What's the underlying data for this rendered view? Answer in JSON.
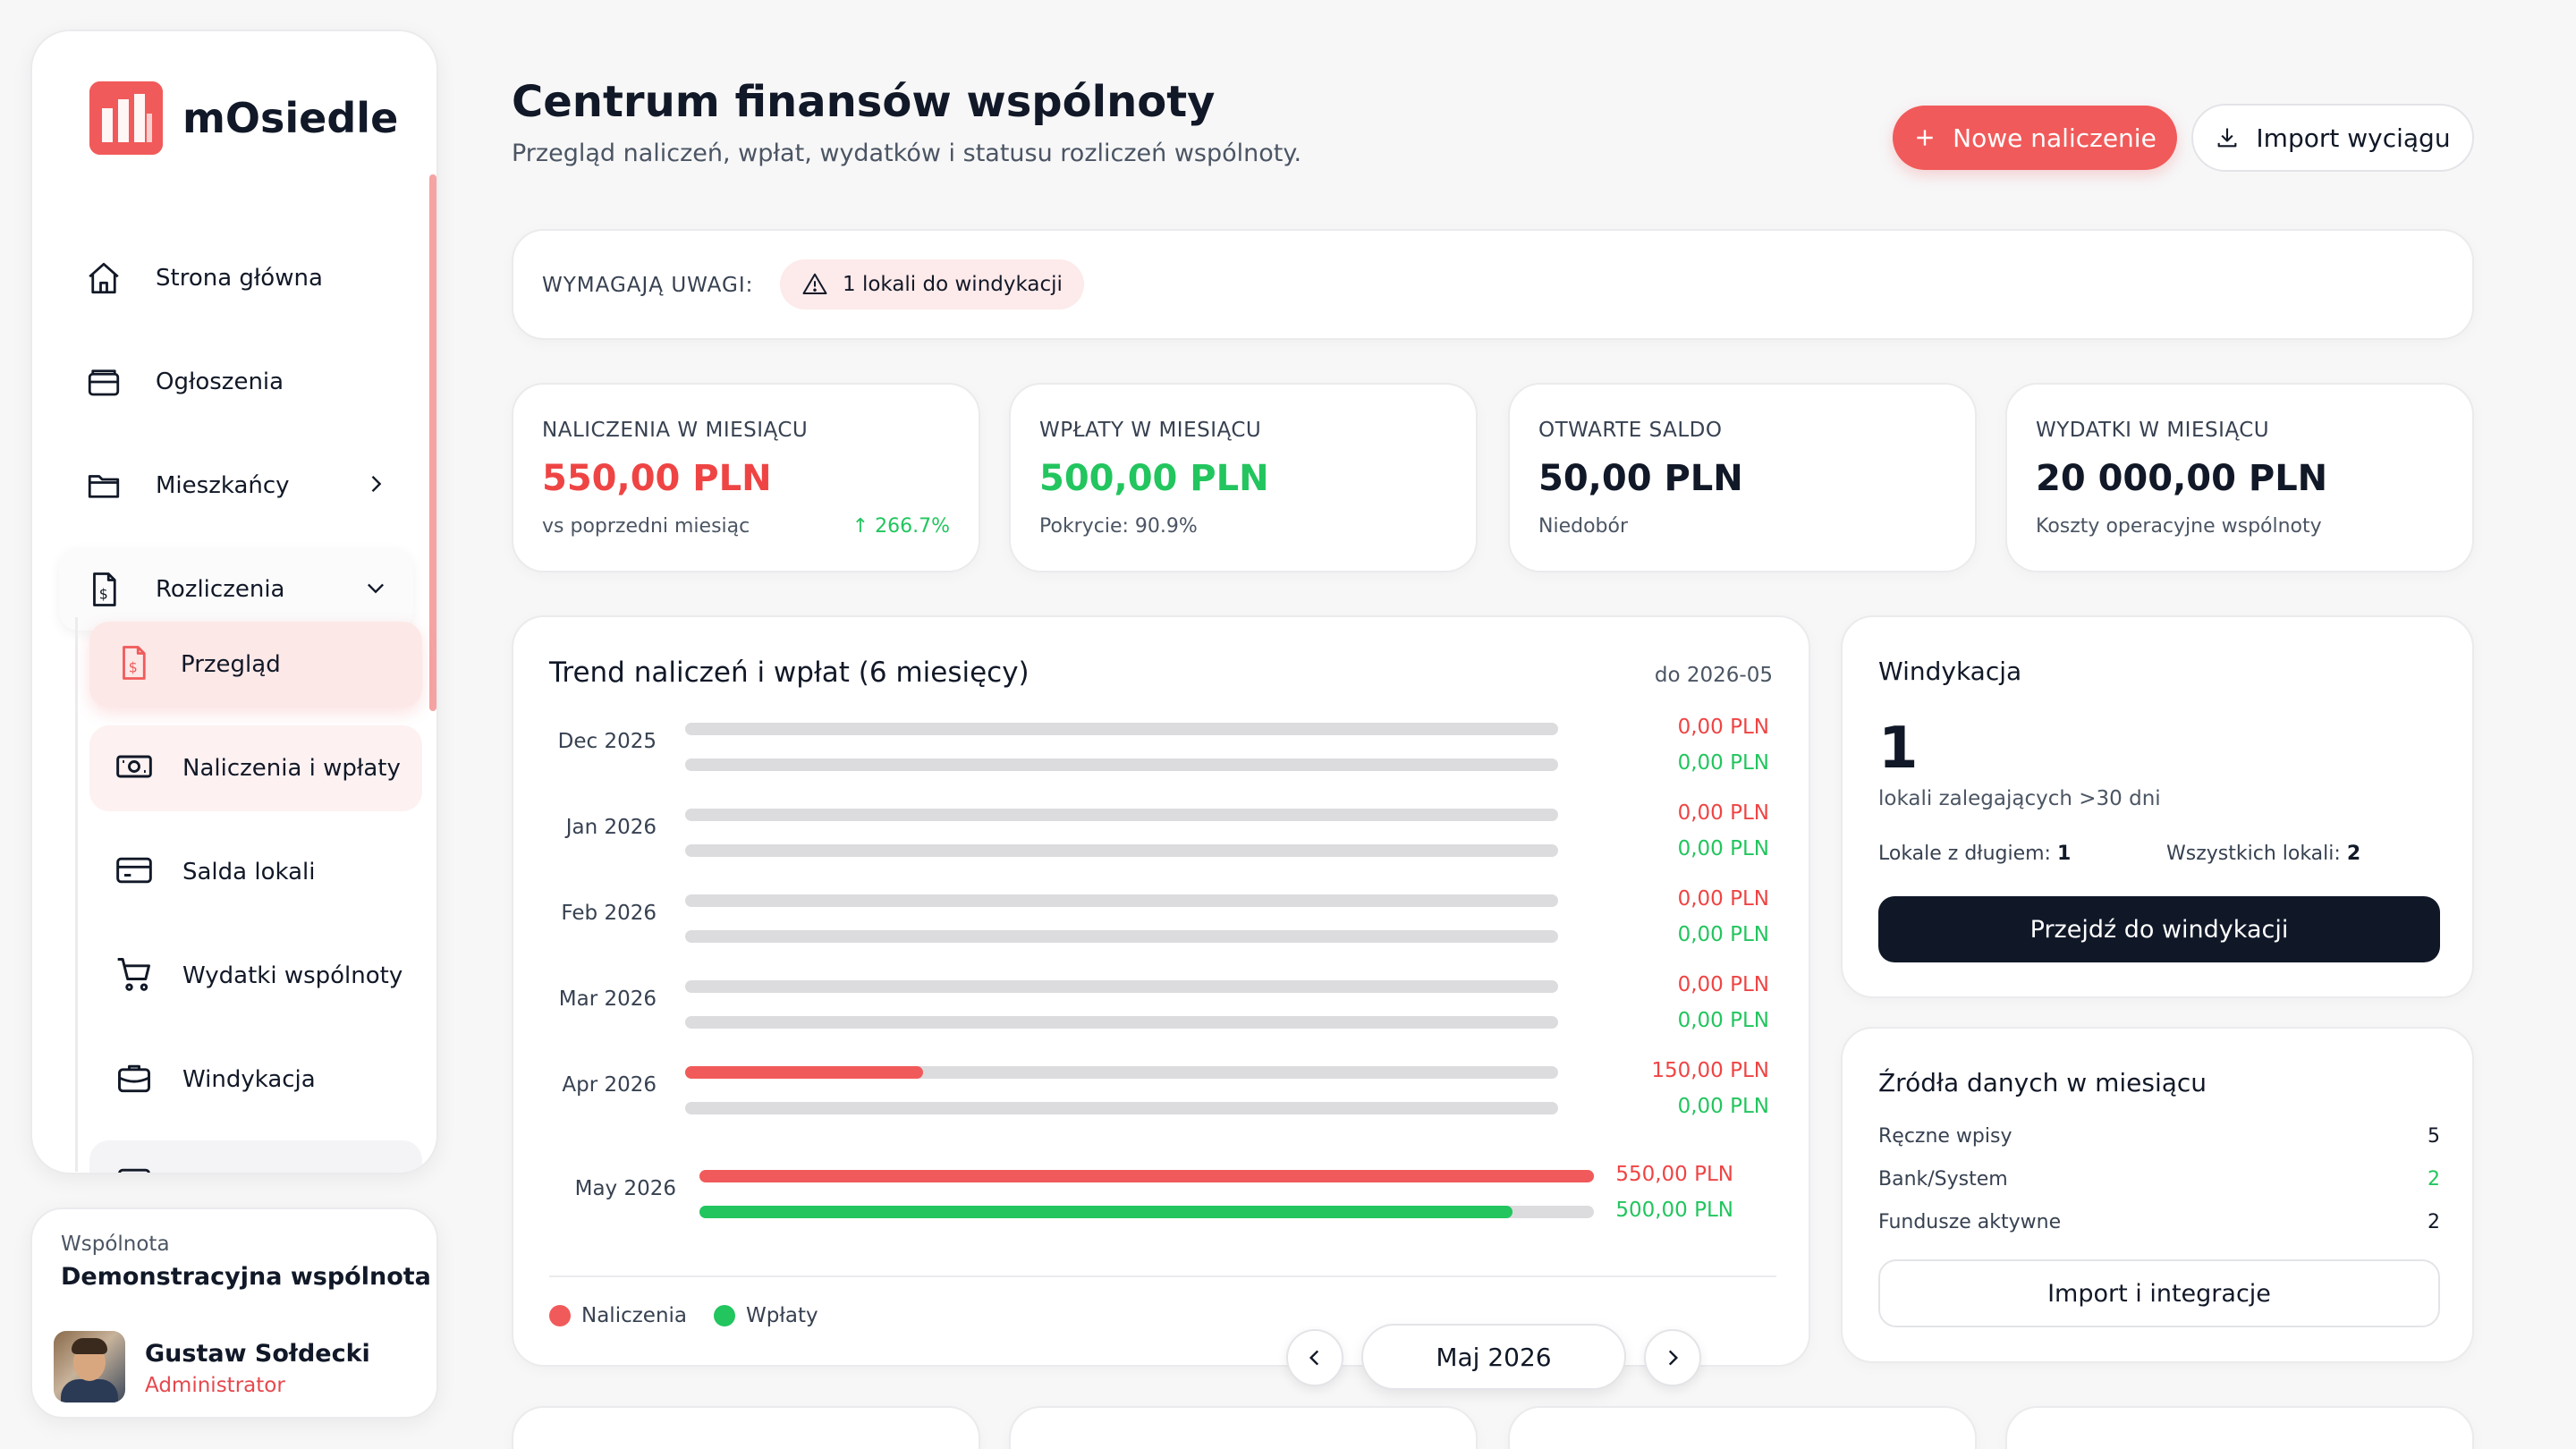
{
  "app": {
    "name": "mOsiedle"
  },
  "sidebar": {
    "items": [
      {
        "label": "Strona główna",
        "icon": "home-icon"
      },
      {
        "label": "Ogłoszenia",
        "icon": "inbox-icon"
      },
      {
        "label": "Mieszkańcy",
        "icon": "folder-icon"
      },
      {
        "label": "Rozliczenia",
        "icon": "document-dollar-icon"
      }
    ],
    "subitems": [
      {
        "label": "Przegląd",
        "icon": "document-dollar-icon"
      },
      {
        "label": "Naliczenia i wpłaty",
        "icon": "banknote-icon"
      },
      {
        "label": "Salda lokali",
        "icon": "credit-card-icon"
      },
      {
        "label": "Wydatki wspólnoty",
        "icon": "cart-icon"
      },
      {
        "label": "Windykacja",
        "icon": "briefcase-icon"
      }
    ]
  },
  "community": {
    "label": "Wspólnota",
    "name": "Demonstracyjna wspólnota",
    "user": "Gustaw Sołdecki",
    "role": "Administrator"
  },
  "header": {
    "title": "Centrum finansów wspólnoty",
    "subtitle": "Przegląd naliczeń, wpłat, wydatków i statusu rozliczeń wspólnoty.",
    "primary_button": "Nowe naliczenie",
    "secondary_button": "Import wyciągu"
  },
  "attention": {
    "label": "WYMAGAJĄ UWAGI:",
    "pill": "1 lokali do windykacji"
  },
  "kpis": [
    {
      "label": "NALICZENIA W MIESIĄCU",
      "value": "550,00 PLN",
      "sub": "vs poprzedni miesiąc",
      "delta": "↑ 266.7%",
      "color": "#ef4444"
    },
    {
      "label": "WPŁATY W MIESIĄCU",
      "value": "500,00 PLN",
      "sub": "Pokrycie: 90.9%",
      "color": "#22c55e"
    },
    {
      "label": "OTWARTE SALDO",
      "value": "50,00 PLN",
      "sub": "Niedobór",
      "color": "#111827"
    },
    {
      "label": "WYDATKI W MIESIĄCU",
      "value": "20 000,00 PLN",
      "sub": "Koszty operacyjne wspólnoty",
      "color": "#111827"
    }
  ],
  "trend": {
    "title": "Trend naliczeń i wpłat (6 miesięcy)",
    "range": "do 2026-05",
    "legend": {
      "charges": "Naliczenia",
      "payments": "Wpłaty"
    },
    "colors": {
      "charges": "#f15a5a",
      "payments": "#22c55e",
      "track": "#dcdcdf"
    },
    "rows": [
      {
        "month": "Dec 2025",
        "charges": 0,
        "payments": 0,
        "charges_label": "0,00 PLN",
        "payments_label": "0,00 PLN"
      },
      {
        "month": "Jan 2026",
        "charges": 0,
        "payments": 0,
        "charges_label": "0,00 PLN",
        "payments_label": "0,00 PLN"
      },
      {
        "month": "Feb 2026",
        "charges": 0,
        "payments": 0,
        "charges_label": "0,00 PLN",
        "payments_label": "0,00 PLN"
      },
      {
        "month": "Mar 2026",
        "charges": 0,
        "payments": 0,
        "charges_label": "0,00 PLN",
        "payments_label": "0,00 PLN"
      },
      {
        "month": "Apr 2026",
        "charges": 150,
        "payments": 0,
        "charges_label": "150,00 PLN",
        "payments_label": "0,00 PLN"
      },
      {
        "month": "May 2026",
        "charges": 550,
        "payments": 500,
        "charges_label": "550,00 PLN",
        "payments_label": "500,00 PLN"
      }
    ],
    "max": 550
  },
  "month_nav": {
    "current": "Maj 2026"
  },
  "windykacja": {
    "title": "Windykacja",
    "count": "1",
    "sub": "lokali zalegających >30 dni",
    "debt_label": "Lokale z długiem:",
    "debt_value": "1",
    "all_label": "Wszystkich lokali:",
    "all_value": "2",
    "button": "Przejdź do windykacji"
  },
  "sources": {
    "title": "Źródła danych w miesiącu",
    "rows": [
      {
        "label": "Ręczne wpisy",
        "value": "5"
      },
      {
        "label": "Bank/System",
        "value": "2"
      },
      {
        "label": "Fundusze aktywne",
        "value": "2"
      }
    ],
    "button": "Import i integracje"
  }
}
